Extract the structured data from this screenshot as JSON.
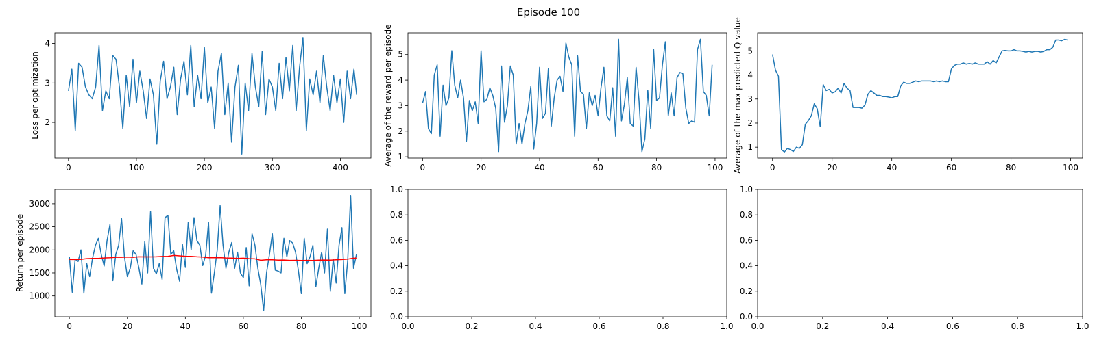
{
  "figure": {
    "title": "Episode 100"
  },
  "colors": {
    "primary": "#1f77b4",
    "mean": "#ff0000",
    "axis": "#000000",
    "background": "#ffffff"
  },
  "chart_data": [
    {
      "id": "loss",
      "type": "line",
      "title": "",
      "xlabel": "",
      "ylabel": "Loss per optimization",
      "xlim": [
        -20,
        445
      ],
      "ylim": [
        1.1,
        4.27
      ],
      "xticks": [
        0,
        100,
        200,
        300,
        400
      ],
      "yticks": [
        2,
        3,
        4
      ],
      "series": [
        {
          "name": "loss",
          "color": "#1f77b4",
          "x": [
            0,
            5,
            10,
            15,
            20,
            25,
            30,
            35,
            40,
            45,
            50,
            55,
            60,
            65,
            70,
            75,
            80,
            85,
            90,
            95,
            100,
            105,
            110,
            115,
            120,
            125,
            130,
            135,
            140,
            145,
            150,
            155,
            160,
            165,
            170,
            175,
            180,
            185,
            190,
            195,
            200,
            205,
            210,
            215,
            220,
            225,
            230,
            235,
            240,
            245,
            250,
            255,
            260,
            265,
            270,
            275,
            280,
            285,
            290,
            295,
            300,
            305,
            310,
            315,
            320,
            325,
            330,
            335,
            340,
            345,
            350,
            355,
            360,
            365,
            370,
            375,
            380,
            385,
            390,
            395,
            400,
            405,
            410,
            415,
            420,
            424
          ],
          "y": [
            2.8,
            3.35,
            1.8,
            3.5,
            3.4,
            2.9,
            2.7,
            2.6,
            2.9,
            3.95,
            2.3,
            2.8,
            2.6,
            3.7,
            3.6,
            2.9,
            1.85,
            3.2,
            2.4,
            3.6,
            2.5,
            3.3,
            2.8,
            2.1,
            3.1,
            2.7,
            1.45,
            3.05,
            3.55,
            2.6,
            2.9,
            3.4,
            2.2,
            3.1,
            3.55,
            2.7,
            3.95,
            2.4,
            3.2,
            2.6,
            3.9,
            2.5,
            2.9,
            1.85,
            3.3,
            3.75,
            2.2,
            3.0,
            1.5,
            2.9,
            3.45,
            1.2,
            3.0,
            2.3,
            3.75,
            2.9,
            2.4,
            3.8,
            2.2,
            3.1,
            2.9,
            2.3,
            3.5,
            2.6,
            3.65,
            2.8,
            3.95,
            2.3,
            3.4,
            4.15,
            1.8,
            3.1,
            2.7,
            3.3,
            2.5,
            3.7,
            2.9,
            2.3,
            3.2,
            2.5,
            3.1,
            2.0,
            3.3,
            2.6,
            3.35,
            2.7
          ]
        }
      ]
    },
    {
      "id": "reward",
      "type": "line",
      "title": "",
      "xlabel": "",
      "ylabel": "Average of the reward per episode",
      "xlim": [
        -5,
        104
      ],
      "ylim": [
        0.95,
        5.85
      ],
      "xticks": [
        0,
        20,
        40,
        60,
        80,
        100
      ],
      "yticks": [
        1,
        2,
        3,
        4,
        5
      ],
      "series": [
        {
          "name": "reward",
          "color": "#1f77b4",
          "x": [
            0,
            1,
            2,
            3,
            4,
            5,
            6,
            7,
            8,
            9,
            10,
            11,
            12,
            13,
            14,
            15,
            16,
            17,
            18,
            19,
            20,
            21,
            22,
            23,
            24,
            25,
            26,
            27,
            28,
            29,
            30,
            31,
            32,
            33,
            34,
            35,
            36,
            37,
            38,
            39,
            40,
            41,
            42,
            43,
            44,
            45,
            46,
            47,
            48,
            49,
            50,
            51,
            52,
            53,
            54,
            55,
            56,
            57,
            58,
            59,
            60,
            61,
            62,
            63,
            64,
            65,
            66,
            67,
            68,
            69,
            70,
            71,
            72,
            73,
            74,
            75,
            76,
            77,
            78,
            79,
            80,
            81,
            82,
            83,
            84,
            85,
            86,
            87,
            88,
            89,
            90,
            91,
            92,
            93,
            94,
            95,
            96,
            97,
            98,
            99
          ],
          "y": [
            3.1,
            3.55,
            2.1,
            1.9,
            4.2,
            4.6,
            1.8,
            3.8,
            3.0,
            3.3,
            5.15,
            3.8,
            3.3,
            4.0,
            3.3,
            1.6,
            3.2,
            2.8,
            3.15,
            2.3,
            5.15,
            3.15,
            3.25,
            3.7,
            3.4,
            2.9,
            1.2,
            4.55,
            2.35,
            3.0,
            4.55,
            4.2,
            1.5,
            2.3,
            1.5,
            2.3,
            2.8,
            3.75,
            1.3,
            2.3,
            4.5,
            2.5,
            2.7,
            4.45,
            2.2,
            3.3,
            4.0,
            4.15,
            3.55,
            5.45,
            4.9,
            4.6,
            1.8,
            4.95,
            3.55,
            3.45,
            2.1,
            3.5,
            3.0,
            3.4,
            2.6,
            3.7,
            4.5,
            2.6,
            2.4,
            3.7,
            1.8,
            5.6,
            2.4,
            3.05,
            4.1,
            2.3,
            2.2,
            4.5,
            3.2,
            1.2,
            1.7,
            3.6,
            2.1,
            5.2,
            3.2,
            3.3,
            4.6,
            5.5,
            2.6,
            3.5,
            2.6,
            4.1,
            4.3,
            4.25,
            2.9,
            2.3,
            2.4,
            2.35,
            5.2,
            5.6,
            3.55,
            3.4,
            2.6,
            4.6
          ]
        }
      ]
    },
    {
      "id": "qvalue",
      "type": "line",
      "title": "",
      "xlabel": "",
      "ylabel": "Average of the max predicted Q value",
      "xlim": [
        -5,
        104
      ],
      "ylim": [
        0.55,
        5.75
      ],
      "xticks": [
        0,
        20,
        40,
        60,
        80,
        100
      ],
      "yticks": [
        1,
        2,
        3,
        4,
        5
      ],
      "series": [
        {
          "name": "q",
          "color": "#1f77b4",
          "x": [
            0,
            1,
            2,
            3,
            4,
            5,
            6,
            7,
            8,
            9,
            10,
            11,
            12,
            13,
            14,
            15,
            16,
            17,
            18,
            19,
            20,
            21,
            22,
            23,
            24,
            25,
            26,
            27,
            28,
            29,
            30,
            31,
            32,
            33,
            34,
            35,
            36,
            37,
            38,
            39,
            40,
            41,
            42,
            43,
            44,
            45,
            46,
            47,
            48,
            49,
            50,
            51,
            52,
            53,
            54,
            55,
            56,
            57,
            58,
            59,
            60,
            61,
            62,
            63,
            64,
            65,
            66,
            67,
            68,
            69,
            70,
            71,
            72,
            73,
            74,
            75,
            76,
            77,
            78,
            79,
            80,
            81,
            82,
            83,
            84,
            85,
            86,
            87,
            88,
            89,
            90,
            91,
            92,
            93,
            94,
            95,
            96,
            97,
            98,
            99
          ],
          "y": [
            4.85,
            4.2,
            3.95,
            0.9,
            0.8,
            0.95,
            0.9,
            0.82,
            1.0,
            0.95,
            1.1,
            1.95,
            2.1,
            2.3,
            2.8,
            2.6,
            1.85,
            3.6,
            3.35,
            3.4,
            3.25,
            3.3,
            3.45,
            3.25,
            3.65,
            3.45,
            3.35,
            2.65,
            2.65,
            2.65,
            2.62,
            2.75,
            3.2,
            3.35,
            3.25,
            3.15,
            3.15,
            3.1,
            3.1,
            3.08,
            3.05,
            3.1,
            3.1,
            3.55,
            3.7,
            3.65,
            3.65,
            3.7,
            3.75,
            3.72,
            3.75,
            3.75,
            3.75,
            3.75,
            3.72,
            3.75,
            3.72,
            3.75,
            3.72,
            3.72,
            4.25,
            4.4,
            4.45,
            4.45,
            4.5,
            4.45,
            4.48,
            4.45,
            4.5,
            4.45,
            4.45,
            4.45,
            4.55,
            4.45,
            4.6,
            4.5,
            4.75,
            5.0,
            5.02,
            5.0,
            5.0,
            5.05,
            5.0,
            5.0,
            4.98,
            4.95,
            4.98,
            4.95,
            4.98,
            4.98,
            4.95,
            4.98,
            5.05,
            5.05,
            5.15,
            5.45,
            5.45,
            5.42,
            5.48,
            5.45
          ]
        }
      ]
    },
    {
      "id": "return",
      "type": "line",
      "title": "",
      "xlabel": "",
      "ylabel": "Return per episode",
      "xlim": [
        -5,
        104
      ],
      "ylim": [
        550,
        3310
      ],
      "xticks": [
        0,
        20,
        40,
        60,
        80,
        100
      ],
      "yticks": [
        1000,
        1500,
        2000,
        2500,
        3000
      ],
      "series": [
        {
          "name": "return",
          "color": "#1f77b4",
          "x": [
            0,
            1,
            2,
            3,
            4,
            5,
            6,
            7,
            8,
            9,
            10,
            11,
            12,
            13,
            14,
            15,
            16,
            17,
            18,
            19,
            20,
            21,
            22,
            23,
            24,
            25,
            26,
            27,
            28,
            29,
            30,
            31,
            32,
            33,
            34,
            35,
            36,
            37,
            38,
            39,
            40,
            41,
            42,
            43,
            44,
            45,
            46,
            47,
            48,
            49,
            50,
            51,
            52,
            53,
            54,
            55,
            56,
            57,
            58,
            59,
            60,
            61,
            62,
            63,
            64,
            65,
            66,
            67,
            68,
            69,
            70,
            71,
            72,
            73,
            74,
            75,
            76,
            77,
            78,
            79,
            80,
            81,
            82,
            83,
            84,
            85,
            86,
            87,
            88,
            89,
            90,
            91,
            92,
            93,
            94,
            95,
            96,
            97,
            98,
            99
          ],
          "y": [
            1850,
            1080,
            1800,
            1750,
            2000,
            1060,
            1700,
            1420,
            1820,
            2100,
            2250,
            1900,
            1650,
            2200,
            2550,
            1330,
            1900,
            2100,
            2680,
            1850,
            1420,
            1600,
            1980,
            1900,
            1600,
            1260,
            2180,
            1500,
            2830,
            1600,
            1480,
            1700,
            1360,
            2700,
            2750,
            1900,
            1980,
            1580,
            1320,
            2120,
            1620,
            2600,
            2000,
            2700,
            2200,
            2100,
            1660,
            1880,
            2600,
            1060,
            1500,
            2000,
            2960,
            2100,
            1600,
            1950,
            2160,
            1600,
            1950,
            1500,
            1400,
            2050,
            1220,
            2350,
            2100,
            1600,
            1250,
            680,
            1500,
            1900,
            2350,
            1560,
            1540,
            1500,
            2250,
            1850,
            2200,
            2150,
            1950,
            1540,
            1050,
            2250,
            1700,
            1850,
            2100,
            1200,
            1600,
            1950,
            1500,
            2450,
            1100,
            1800,
            1280,
            2100,
            2480,
            1050,
            1780,
            3180,
            1600,
            1900
          ]
        },
        {
          "name": "mean",
          "color": "#ff0000",
          "x": [
            0,
            2,
            4,
            6,
            8,
            10,
            12,
            14,
            16,
            18,
            20,
            22,
            24,
            26,
            28,
            30,
            32,
            34,
            36,
            38,
            40,
            42,
            44,
            46,
            48,
            50,
            52,
            54,
            56,
            58,
            60,
            62,
            64,
            66,
            68,
            70,
            72,
            74,
            76,
            78,
            80,
            82,
            84,
            86,
            88,
            90,
            92,
            94,
            96,
            98,
            99
          ],
          "y": [
            1790,
            1790,
            1795,
            1810,
            1815,
            1815,
            1825,
            1830,
            1840,
            1840,
            1845,
            1840,
            1850,
            1848,
            1848,
            1850,
            1858,
            1860,
            1880,
            1870,
            1862,
            1860,
            1850,
            1845,
            1830,
            1830,
            1832,
            1825,
            1822,
            1815,
            1820,
            1810,
            1805,
            1775,
            1785,
            1785,
            1778,
            1780,
            1772,
            1775,
            1770,
            1772,
            1770,
            1778,
            1780,
            1778,
            1785,
            1790,
            1800,
            1820,
            1820
          ]
        }
      ]
    },
    {
      "id": "empty1",
      "type": "line",
      "title": "",
      "xlabel": "",
      "ylabel": "",
      "xlim": [
        0,
        1
      ],
      "ylim": [
        0,
        1
      ],
      "xticks": [
        0.0,
        0.2,
        0.4,
        0.6,
        0.8,
        1.0
      ],
      "yticks": [
        0.0,
        0.2,
        0.4,
        0.6,
        0.8,
        1.0
      ],
      "series": []
    },
    {
      "id": "empty2",
      "type": "line",
      "title": "",
      "xlabel": "",
      "ylabel": "",
      "xlim": [
        0,
        1
      ],
      "ylim": [
        0,
        1
      ],
      "xticks": [
        0.0,
        0.2,
        0.4,
        0.6,
        0.8,
        1.0
      ],
      "yticks": [
        0.0,
        0.2,
        0.4,
        0.6,
        0.8,
        1.0
      ],
      "series": []
    }
  ]
}
